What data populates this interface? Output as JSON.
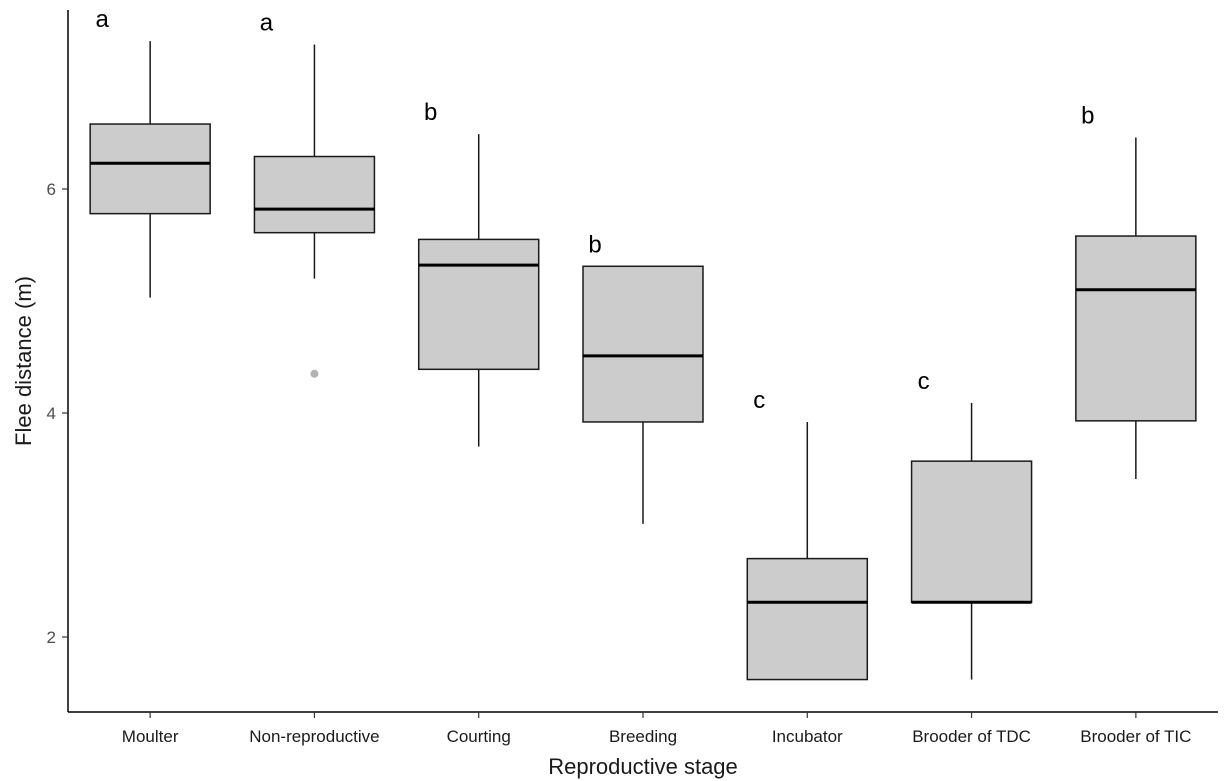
{
  "chart_data": {
    "type": "box",
    "title": "",
    "xlabel": "Reproductive stage",
    "ylabel": "Flee distance (m)",
    "ylim": [
      1.35,
      7.45
    ],
    "yticks": [
      2,
      4,
      6
    ],
    "grid": false,
    "legend": "none",
    "categories": [
      "Moulter",
      "Non-reproductive",
      "Courting",
      "Breeding",
      "Incubator",
      "Brooder of TDC",
      "Brooder of TIC"
    ],
    "boxes": [
      {
        "category": "Moulter",
        "min": 5.03,
        "q1": 5.78,
        "median": 6.23,
        "q3": 6.58,
        "max": 7.32,
        "outliers": [],
        "letter": "a"
      },
      {
        "category": "Non-reproductive",
        "min": 5.2,
        "q1": 5.61,
        "median": 5.82,
        "q3": 6.29,
        "max": 7.29,
        "outliers": [
          4.35
        ],
        "letter": "a"
      },
      {
        "category": "Courting",
        "min": 3.7,
        "q1": 4.39,
        "median": 5.32,
        "q3": 5.55,
        "max": 6.49,
        "outliers": [],
        "letter": "b"
      },
      {
        "category": "Breeding",
        "min": 3.01,
        "q1": 3.92,
        "median": 4.51,
        "q3": 5.31,
        "max": 5.31,
        "outliers": [],
        "letter": "b"
      },
      {
        "category": "Incubator",
        "min": 1.62,
        "q1": 1.62,
        "median": 2.31,
        "q3": 2.7,
        "max": 3.92,
        "outliers": [],
        "letter": "c"
      },
      {
        "category": "Brooder of TDC",
        "min": 1.62,
        "q1": 2.31,
        "median": 2.31,
        "q3": 3.57,
        "max": 4.09,
        "outliers": [],
        "letter": "c"
      },
      {
        "category": "Brooder of TIC",
        "min": 3.41,
        "q1": 3.93,
        "median": 5.1,
        "q3": 5.58,
        "max": 6.46,
        "outliers": [],
        "letter": "b"
      }
    ],
    "colors": {
      "box_fill": "#cccccc",
      "box_stroke": "#1a1a1a",
      "median": "#000000",
      "outlier": "#b3b3b3",
      "axis": "#000000"
    }
  }
}
